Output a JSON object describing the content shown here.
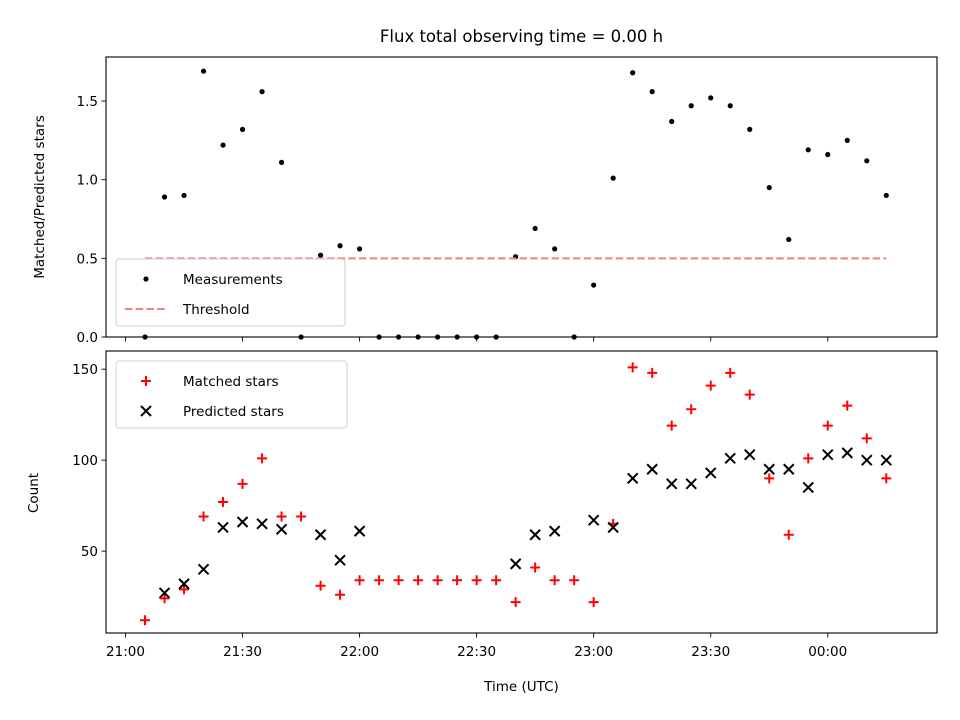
{
  "chart_data": [
    {
      "type": "scatter",
      "title": "Flux total observing time = 0.00 h",
      "ylabel": "Matched/Predicted stars",
      "xlabel": "",
      "ylim": [
        0,
        1.78
      ],
      "yticks": [
        {
          "v": 0.0,
          "label": "0.0"
        },
        {
          "v": 0.5,
          "label": "0.5"
        },
        {
          "v": 1.0,
          "label": "1.0"
        },
        {
          "v": 1.5,
          "label": "1.5"
        }
      ],
      "series": [
        {
          "name": "Measurements",
          "marker": "dot",
          "color": "#000000",
          "points": [
            [
              "21:05",
              0.0
            ],
            [
              "21:10",
              0.89
            ],
            [
              "21:15",
              0.9
            ],
            [
              "21:20",
              1.69
            ],
            [
              "21:25",
              1.22
            ],
            [
              "21:30",
              1.32
            ],
            [
              "21:35",
              1.56
            ],
            [
              "21:40",
              1.11
            ],
            [
              "21:45",
              0.0
            ],
            [
              "21:50",
              0.52
            ],
            [
              "21:55",
              0.58
            ],
            [
              "22:00",
              0.56
            ],
            [
              "22:05",
              0.0
            ],
            [
              "22:10",
              0.0
            ],
            [
              "22:15",
              0.0
            ],
            [
              "22:20",
              0.0
            ],
            [
              "22:25",
              0.0
            ],
            [
              "22:30",
              0.0
            ],
            [
              "22:35",
              0.0
            ],
            [
              "22:40",
              0.51
            ],
            [
              "22:45",
              0.69
            ],
            [
              "22:50",
              0.56
            ],
            [
              "22:55",
              0.0
            ],
            [
              "23:00",
              0.33
            ],
            [
              "23:05",
              1.01
            ],
            [
              "23:10",
              1.68
            ],
            [
              "23:15",
              1.56
            ],
            [
              "23:20",
              1.37
            ],
            [
              "23:25",
              1.47
            ],
            [
              "23:30",
              1.52
            ],
            [
              "23:35",
              1.47
            ],
            [
              "23:40",
              1.32
            ],
            [
              "23:45",
              0.95
            ],
            [
              "23:50",
              0.62
            ],
            [
              "23:55",
              1.19
            ],
            [
              "00:00",
              1.16
            ],
            [
              "00:05",
              1.25
            ],
            [
              "00:10",
              1.12
            ],
            [
              "00:15",
              0.9
            ]
          ]
        },
        {
          "name": "Threshold",
          "style": "dashed-line",
          "color": "#f08080",
          "points": [
            [
              "21:05",
              0.5
            ],
            [
              "00:15",
              0.5
            ]
          ]
        }
      ],
      "legend": "lower-left"
    },
    {
      "type": "scatter",
      "title": "",
      "ylabel": "Count",
      "xlabel": "Time (UTC)",
      "ylim": [
        5,
        160
      ],
      "yticks": [
        {
          "v": 50,
          "label": "50"
        },
        {
          "v": 100,
          "label": "100"
        },
        {
          "v": 150,
          "label": "150"
        }
      ],
      "xlim": [
        "20:55",
        "00:28"
      ],
      "xticks": [
        "21:00",
        "21:30",
        "22:00",
        "22:30",
        "23:00",
        "23:30",
        "00:00"
      ],
      "series": [
        {
          "name": "Matched stars",
          "marker": "plus",
          "color": "#ff0000",
          "points": [
            [
              "21:05",
              12
            ],
            [
              "21:10",
              24
            ],
            [
              "21:15",
              29
            ],
            [
              "21:20",
              69
            ],
            [
              "21:25",
              77
            ],
            [
              "21:30",
              87
            ],
            [
              "21:35",
              101
            ],
            [
              "21:40",
              69
            ],
            [
              "21:45",
              69
            ],
            [
              "21:50",
              31
            ],
            [
              "21:55",
              26
            ],
            [
              "22:00",
              34
            ],
            [
              "22:05",
              34
            ],
            [
              "22:10",
              34
            ],
            [
              "22:15",
              34
            ],
            [
              "22:20",
              34
            ],
            [
              "22:25",
              34
            ],
            [
              "22:30",
              34
            ],
            [
              "22:35",
              34
            ],
            [
              "22:40",
              22
            ],
            [
              "22:45",
              41
            ],
            [
              "22:50",
              34
            ],
            [
              "22:55",
              34
            ],
            [
              "23:00",
              22
            ],
            [
              "23:05",
              65
            ],
            [
              "23:10",
              151
            ],
            [
              "23:15",
              148
            ],
            [
              "23:20",
              119
            ],
            [
              "23:25",
              128
            ],
            [
              "23:30",
              141
            ],
            [
              "23:35",
              148
            ],
            [
              "23:40",
              136
            ],
            [
              "23:45",
              90
            ],
            [
              "23:50",
              59
            ],
            [
              "23:55",
              101
            ],
            [
              "00:00",
              119
            ],
            [
              "00:05",
              130
            ],
            [
              "00:10",
              112
            ],
            [
              "00:15",
              90
            ]
          ]
        },
        {
          "name": "Predicted stars",
          "marker": "x",
          "color": "#000000",
          "points": [
            [
              "21:10",
              27
            ],
            [
              "21:15",
              32
            ],
            [
              "21:20",
              40
            ],
            [
              "21:25",
              63
            ],
            [
              "21:30",
              66
            ],
            [
              "21:35",
              65
            ],
            [
              "21:40",
              62
            ],
            [
              "21:50",
              59
            ],
            [
              "21:55",
              45
            ],
            [
              "22:00",
              61
            ],
            [
              "22:40",
              43
            ],
            [
              "22:45",
              59
            ],
            [
              "22:50",
              61
            ],
            [
              "23:00",
              67
            ],
            [
              "23:05",
              63
            ],
            [
              "23:10",
              90
            ],
            [
              "23:15",
              95
            ],
            [
              "23:20",
              87
            ],
            [
              "23:25",
              87
            ],
            [
              "23:30",
              93
            ],
            [
              "23:35",
              101
            ],
            [
              "23:40",
              103
            ],
            [
              "23:45",
              95
            ],
            [
              "23:50",
              95
            ],
            [
              "23:55",
              85
            ],
            [
              "00:00",
              103
            ],
            [
              "00:05",
              104
            ],
            [
              "00:10",
              100
            ],
            [
              "00:15",
              100
            ]
          ]
        }
      ],
      "legend": "upper-left"
    }
  ]
}
